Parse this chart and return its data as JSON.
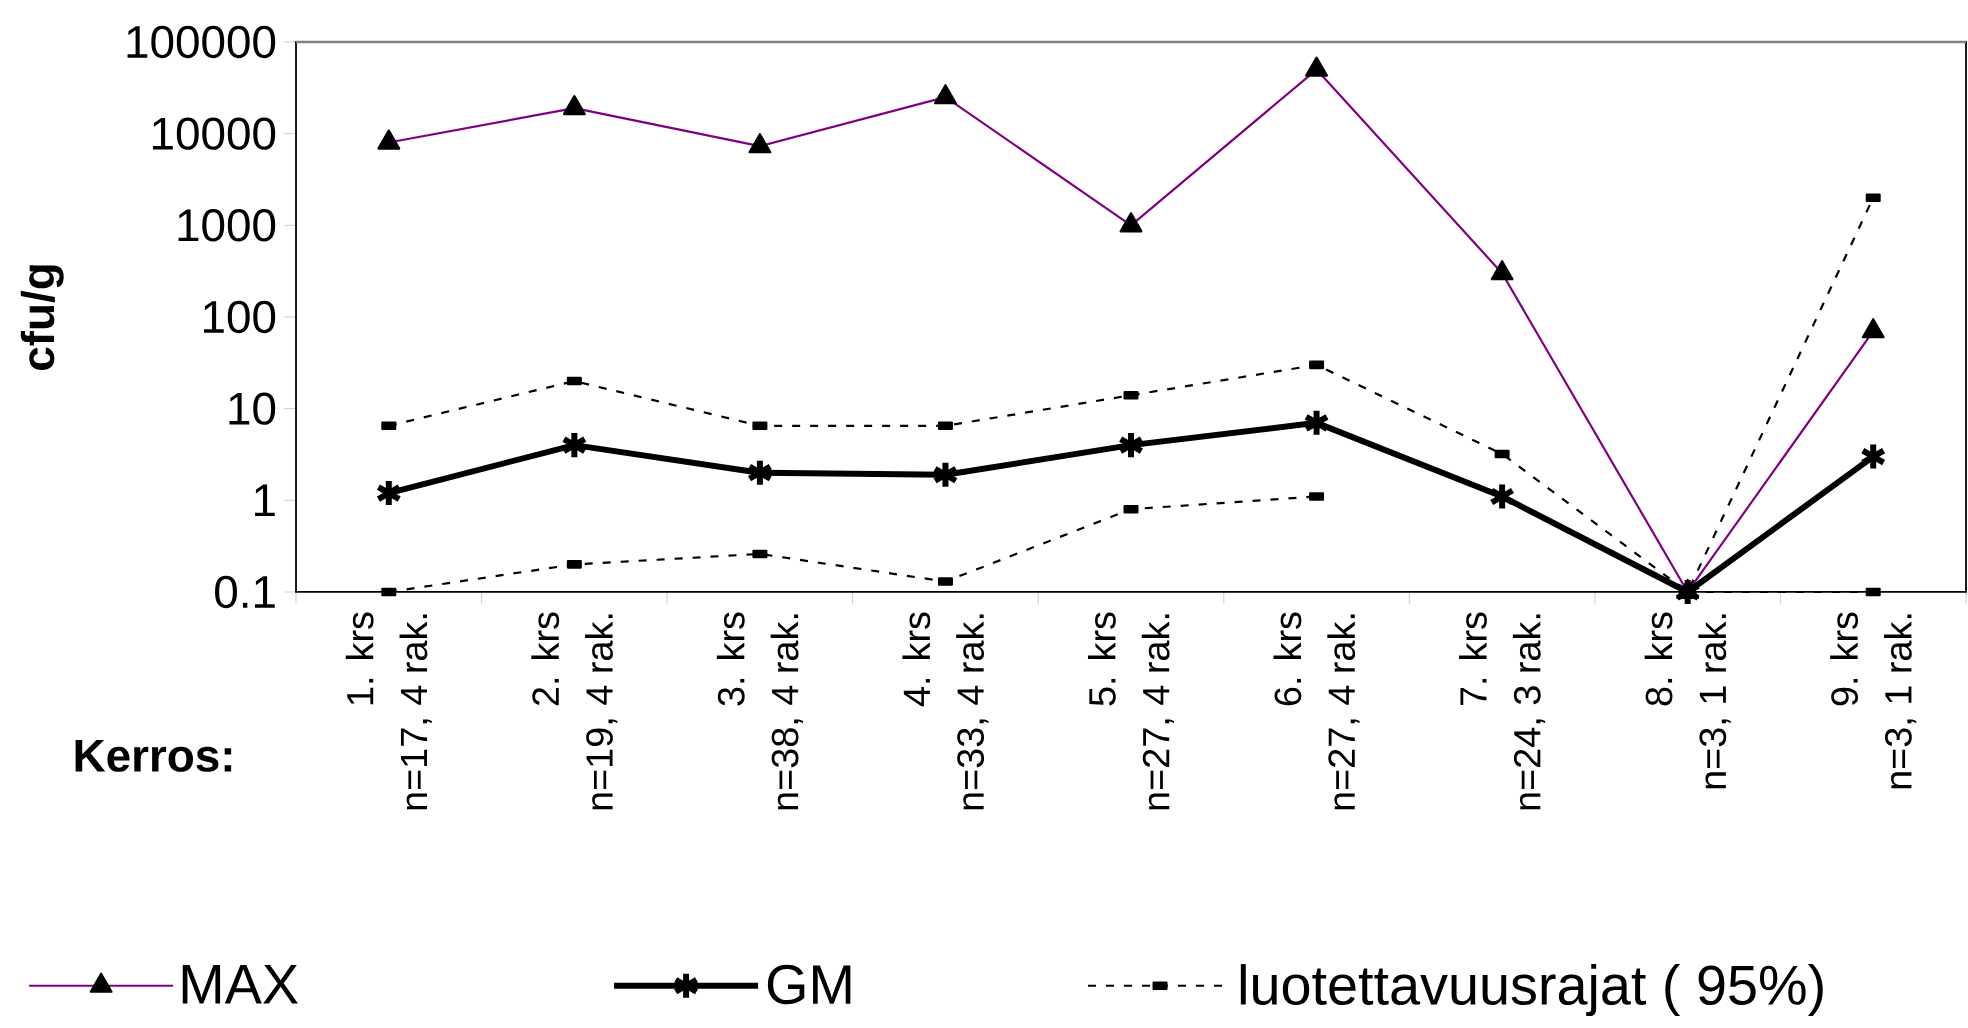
{
  "chart_data": {
    "type": "line",
    "xlabel": "Kerros:",
    "ylabel": "cfu/g",
    "log": true,
    "grid": false,
    "legend": "bottom",
    "categories": [
      "1. krs\nn=17, 4 rak.",
      "2. krs\nn=19, 4 rak.",
      "3. krs\nn=38, 4 rak.",
      "4. krs\nn=33, 4 rak.",
      "5. krs\nn=27, 4 rak.",
      "6. krs\nn=27, 4 rak.",
      "7. krs\nn=24, 3 rak.",
      "8. krs\nn=3, 1 rak.",
      "9. krs\nn=3, 1 rak."
    ],
    "ylim": [
      0.1,
      100000
    ],
    "yticks": [
      0.1,
      1,
      10,
      100,
      1000,
      10000,
      100000
    ],
    "series": [
      {
        "name": "MAX",
        "color": "#800080",
        "marker": "triangle",
        "line_style": "solid",
        "values": [
          8000,
          19000,
          7300,
          25000,
          1000,
          50000,
          300,
          0.1,
          70
        ]
      },
      {
        "name": "GM",
        "color": "#000000",
        "marker": "cross",
        "line_style": "solid",
        "values": [
          1.2,
          4,
          2,
          1.9,
          4,
          7,
          1.1,
          0.1,
          3
        ]
      },
      {
        "name": "luotettavuusrajat ( 95%)",
        "color": "#000000",
        "marker": "square",
        "line_style": "dashed",
        "values": [
          6.5,
          20,
          6.5,
          6.5,
          14,
          30,
          3.2,
          0.1,
          2000
        ]
      },
      {
        "color": "#000000",
        "marker": "square",
        "line_style": "dashed",
        "values": [
          0.1,
          0.2,
          0.26,
          0.13,
          0.8,
          1.1,
          null,
          0.1,
          0.1
        ]
      }
    ]
  }
}
